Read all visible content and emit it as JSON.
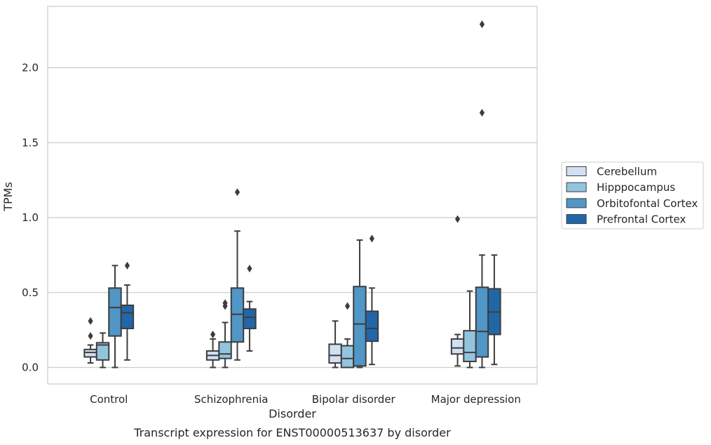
{
  "chart_data": {
    "type": "boxplot",
    "caption": "Transcript expression for ENST00000513637 by disorder",
    "xlabel": "Disorder",
    "ylabel": "TPMs",
    "ylim": [
      -0.11,
      2.41
    ],
    "yticks": [
      "0.0",
      "0.5",
      "1.0",
      "1.5",
      "2.0"
    ],
    "ytick_values": [
      0.0,
      0.5,
      1.0,
      1.5,
      2.0
    ],
    "grid": true,
    "legend_position": "right",
    "categories": [
      "Control",
      "Schizophrenia",
      "Bipolar disorder",
      "Major depression"
    ],
    "series": [
      {
        "name": "Cerebellum",
        "color": "#cfe1f2",
        "boxes": [
          {
            "whislo": 0.03,
            "q1": 0.07,
            "med": 0.1,
            "q3": 0.12,
            "whishi": 0.15,
            "fliers": [
              0.21,
              0.31
            ]
          },
          {
            "whislo": 0.0,
            "q1": 0.05,
            "med": 0.08,
            "q3": 0.11,
            "whishi": 0.19,
            "fliers": [
              0.22
            ]
          },
          {
            "whislo": 0.0,
            "q1": 0.03,
            "med": 0.08,
            "q3": 0.155,
            "whishi": 0.31,
            "fliers": []
          },
          {
            "whislo": 0.01,
            "q1": 0.09,
            "med": 0.13,
            "q3": 0.19,
            "whishi": 0.22,
            "fliers": [
              0.99
            ]
          }
        ]
      },
      {
        "name": "Hipppocampus",
        "color": "#93c4de",
        "boxes": [
          {
            "whislo": 0.0,
            "q1": 0.05,
            "med": 0.15,
            "q3": 0.165,
            "whishi": 0.23,
            "fliers": []
          },
          {
            "whislo": 0.0,
            "q1": 0.06,
            "med": 0.09,
            "q3": 0.17,
            "whishi": 0.3,
            "fliers": [
              0.41,
              0.43
            ]
          },
          {
            "whislo": 0.0,
            "q1": 0.0,
            "med": 0.06,
            "q3": 0.145,
            "whishi": 0.19,
            "fliers": [
              0.41
            ]
          },
          {
            "whislo": 0.0,
            "q1": 0.04,
            "med": 0.1,
            "q3": 0.245,
            "whishi": 0.51,
            "fliers": []
          }
        ]
      },
      {
        "name": "Orbitofontal Cortex",
        "color": "#5096c6",
        "boxes": [
          {
            "whislo": 0.0,
            "q1": 0.21,
            "med": 0.4,
            "q3": 0.53,
            "whishi": 0.68,
            "fliers": []
          },
          {
            "whislo": 0.05,
            "q1": 0.17,
            "med": 0.355,
            "q3": 0.53,
            "whishi": 0.91,
            "fliers": [
              1.17
            ]
          },
          {
            "whislo": 0.0,
            "q1": 0.01,
            "med": 0.29,
            "q3": 0.54,
            "whishi": 0.85,
            "fliers": []
          },
          {
            "whislo": 0.0,
            "q1": 0.07,
            "med": 0.24,
            "q3": 0.535,
            "whishi": 0.75,
            "fliers": [
              1.7,
              2.29
            ]
          }
        ]
      },
      {
        "name": "Prefrontal Cortex",
        "color": "#2167a8",
        "boxes": [
          {
            "whislo": 0.05,
            "q1": 0.26,
            "med": 0.365,
            "q3": 0.415,
            "whishi": 0.55,
            "fliers": [
              0.68
            ]
          },
          {
            "whislo": 0.11,
            "q1": 0.26,
            "med": 0.335,
            "q3": 0.39,
            "whishi": 0.44,
            "fliers": [
              0.66
            ]
          },
          {
            "whislo": 0.02,
            "q1": 0.175,
            "med": 0.26,
            "q3": 0.375,
            "whishi": 0.53,
            "fliers": [
              0.86
            ]
          },
          {
            "whislo": 0.02,
            "q1": 0.22,
            "med": 0.37,
            "q3": 0.525,
            "whishi": 0.75,
            "fliers": []
          }
        ]
      }
    ]
  }
}
